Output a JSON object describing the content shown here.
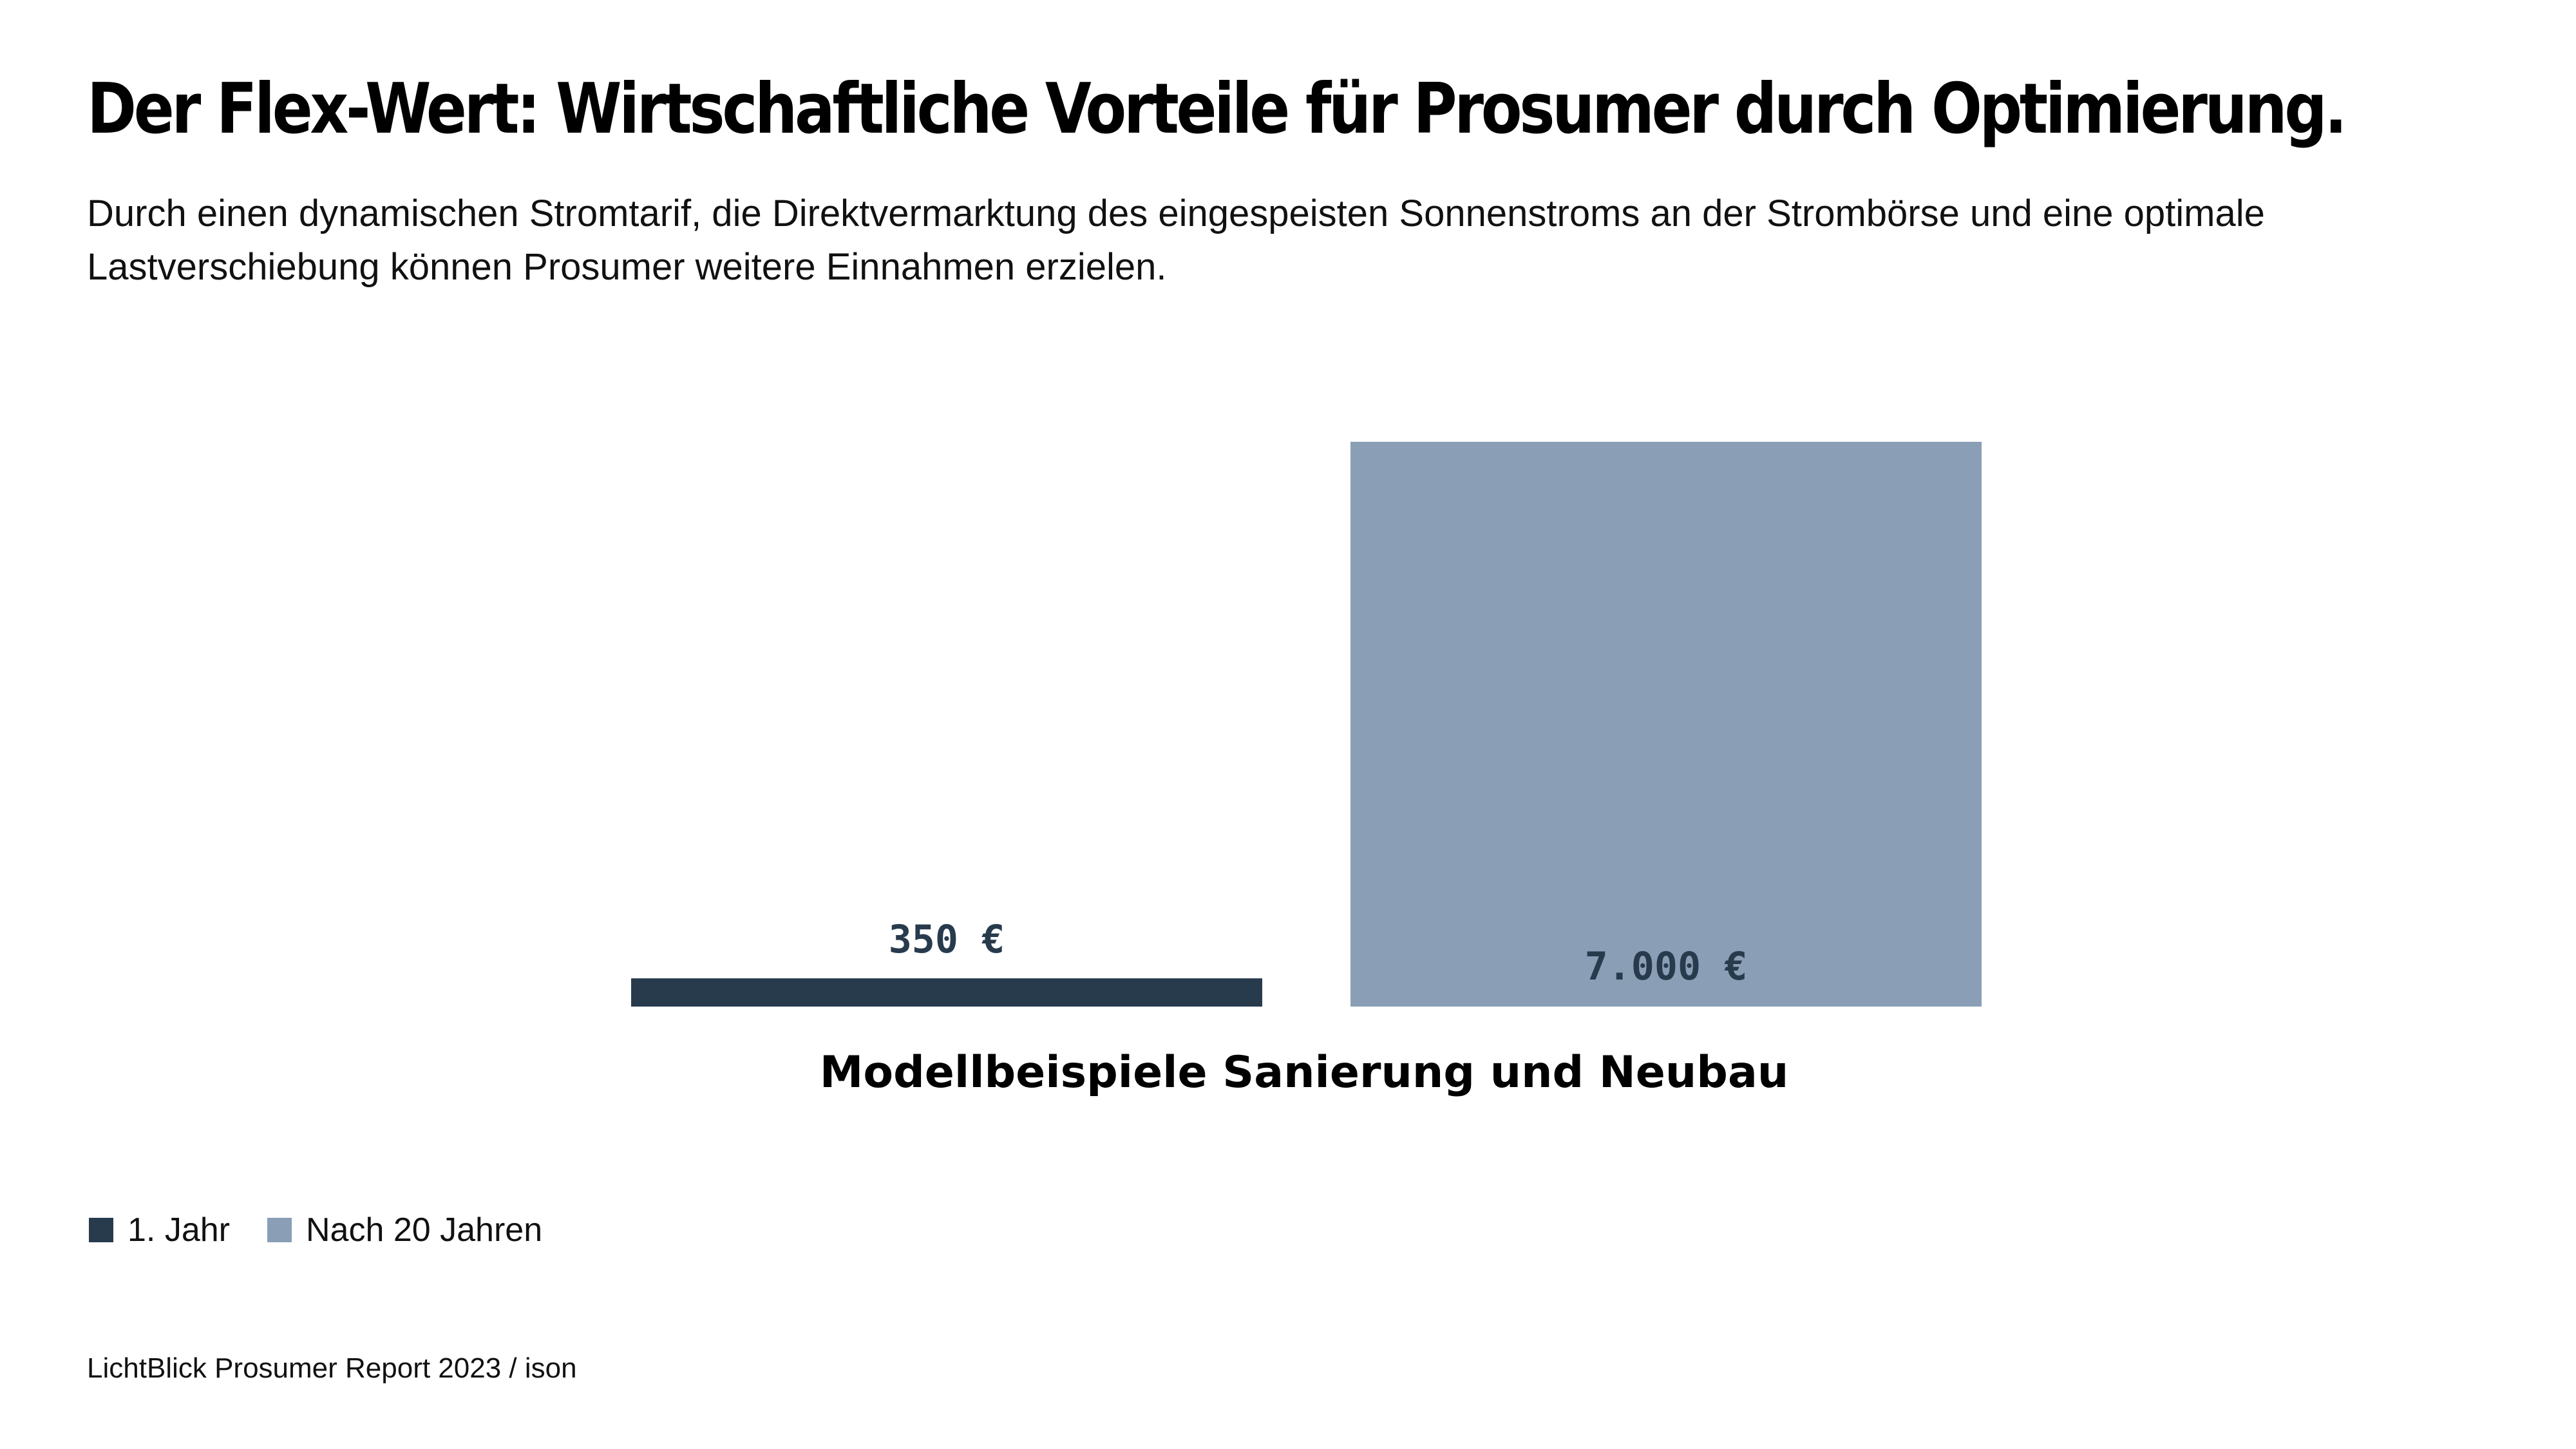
{
  "chart_data": {
    "type": "bar",
    "title": "Der Flex-Wert: Wirtschaftliche Vorteile für Prosumer durch Optimierung.",
    "subtitle": "Durch einen dynamischen Stromtarif, die Direktvermarktung des eingespeisten Sonnenstroms an der Strombörse und eine optimale Lastverschiebung können Prosumer weitere Einnahmen erzielen.",
    "categories": [
      "Modellbeispiele Sanierung und Neubau"
    ],
    "xlabel": "Modellbeispiele Sanierung und Neubau",
    "ylabel": "",
    "ylim": [
      0,
      7000
    ],
    "grid": false,
    "legend_position": "bottom-left",
    "series": [
      {
        "name": "1. Jahr",
        "values": [
          350
        ],
        "label": "350 €",
        "color": "#283b4d"
      },
      {
        "name": "Nach 20 Jahren",
        "values": [
          7000
        ],
        "label": "7.000 €",
        "color": "#8a9fb6"
      }
    ]
  },
  "source": "LichtBlick Prosumer Report 2023 / ison"
}
